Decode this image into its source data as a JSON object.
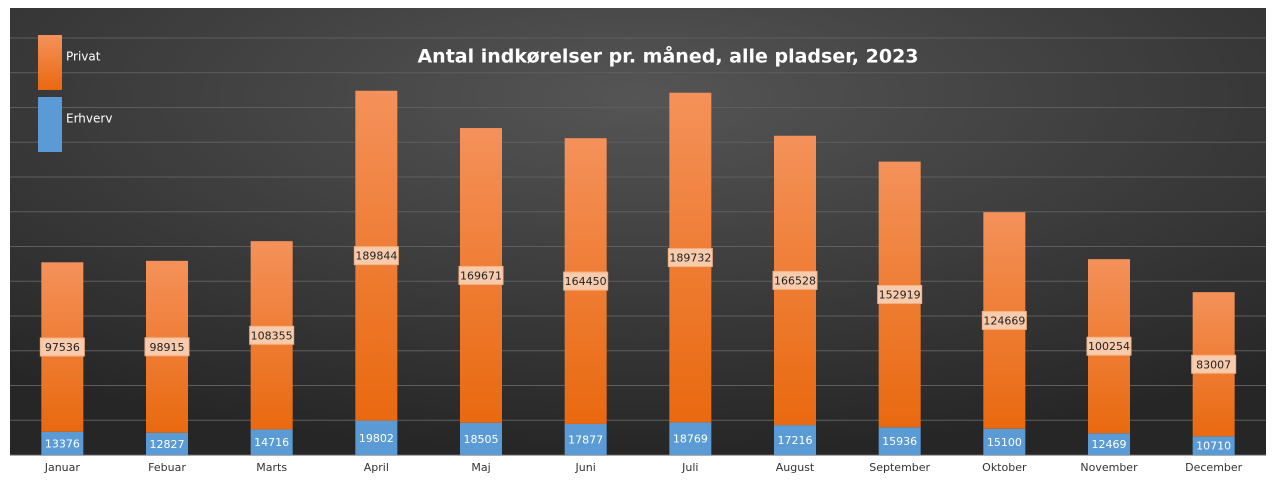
{
  "chart_data": {
    "type": "stacked_bar",
    "title": "Antal indkørelser pr. måned, alle pladser, 2023",
    "categories": [
      "Januar",
      "Febuar",
      "Marts",
      "April",
      "Maj",
      "Juni",
      "Juli",
      "August",
      "September",
      "Oktober",
      "November",
      "December"
    ],
    "series": [
      {
        "name": "Erhverv",
        "color": "#5b9bd5",
        "values": [
          13376,
          12827,
          14716,
          19802,
          18505,
          17877,
          18769,
          17216,
          15936,
          15100,
          12469,
          10710
        ]
      },
      {
        "name": "Privat",
        "color": "#ed7d31",
        "values": [
          97536,
          98915,
          108355,
          189844,
          169671,
          164450,
          189732,
          166528,
          152919,
          124669,
          100254,
          83007
        ]
      }
    ],
    "ylim": [
      0,
      240000
    ],
    "yticks": [
      0,
      20000,
      40000,
      60000,
      80000,
      100000,
      120000,
      140000,
      160000,
      180000,
      200000,
      220000,
      240000
    ],
    "grid": true,
    "legend": "top-left"
  }
}
